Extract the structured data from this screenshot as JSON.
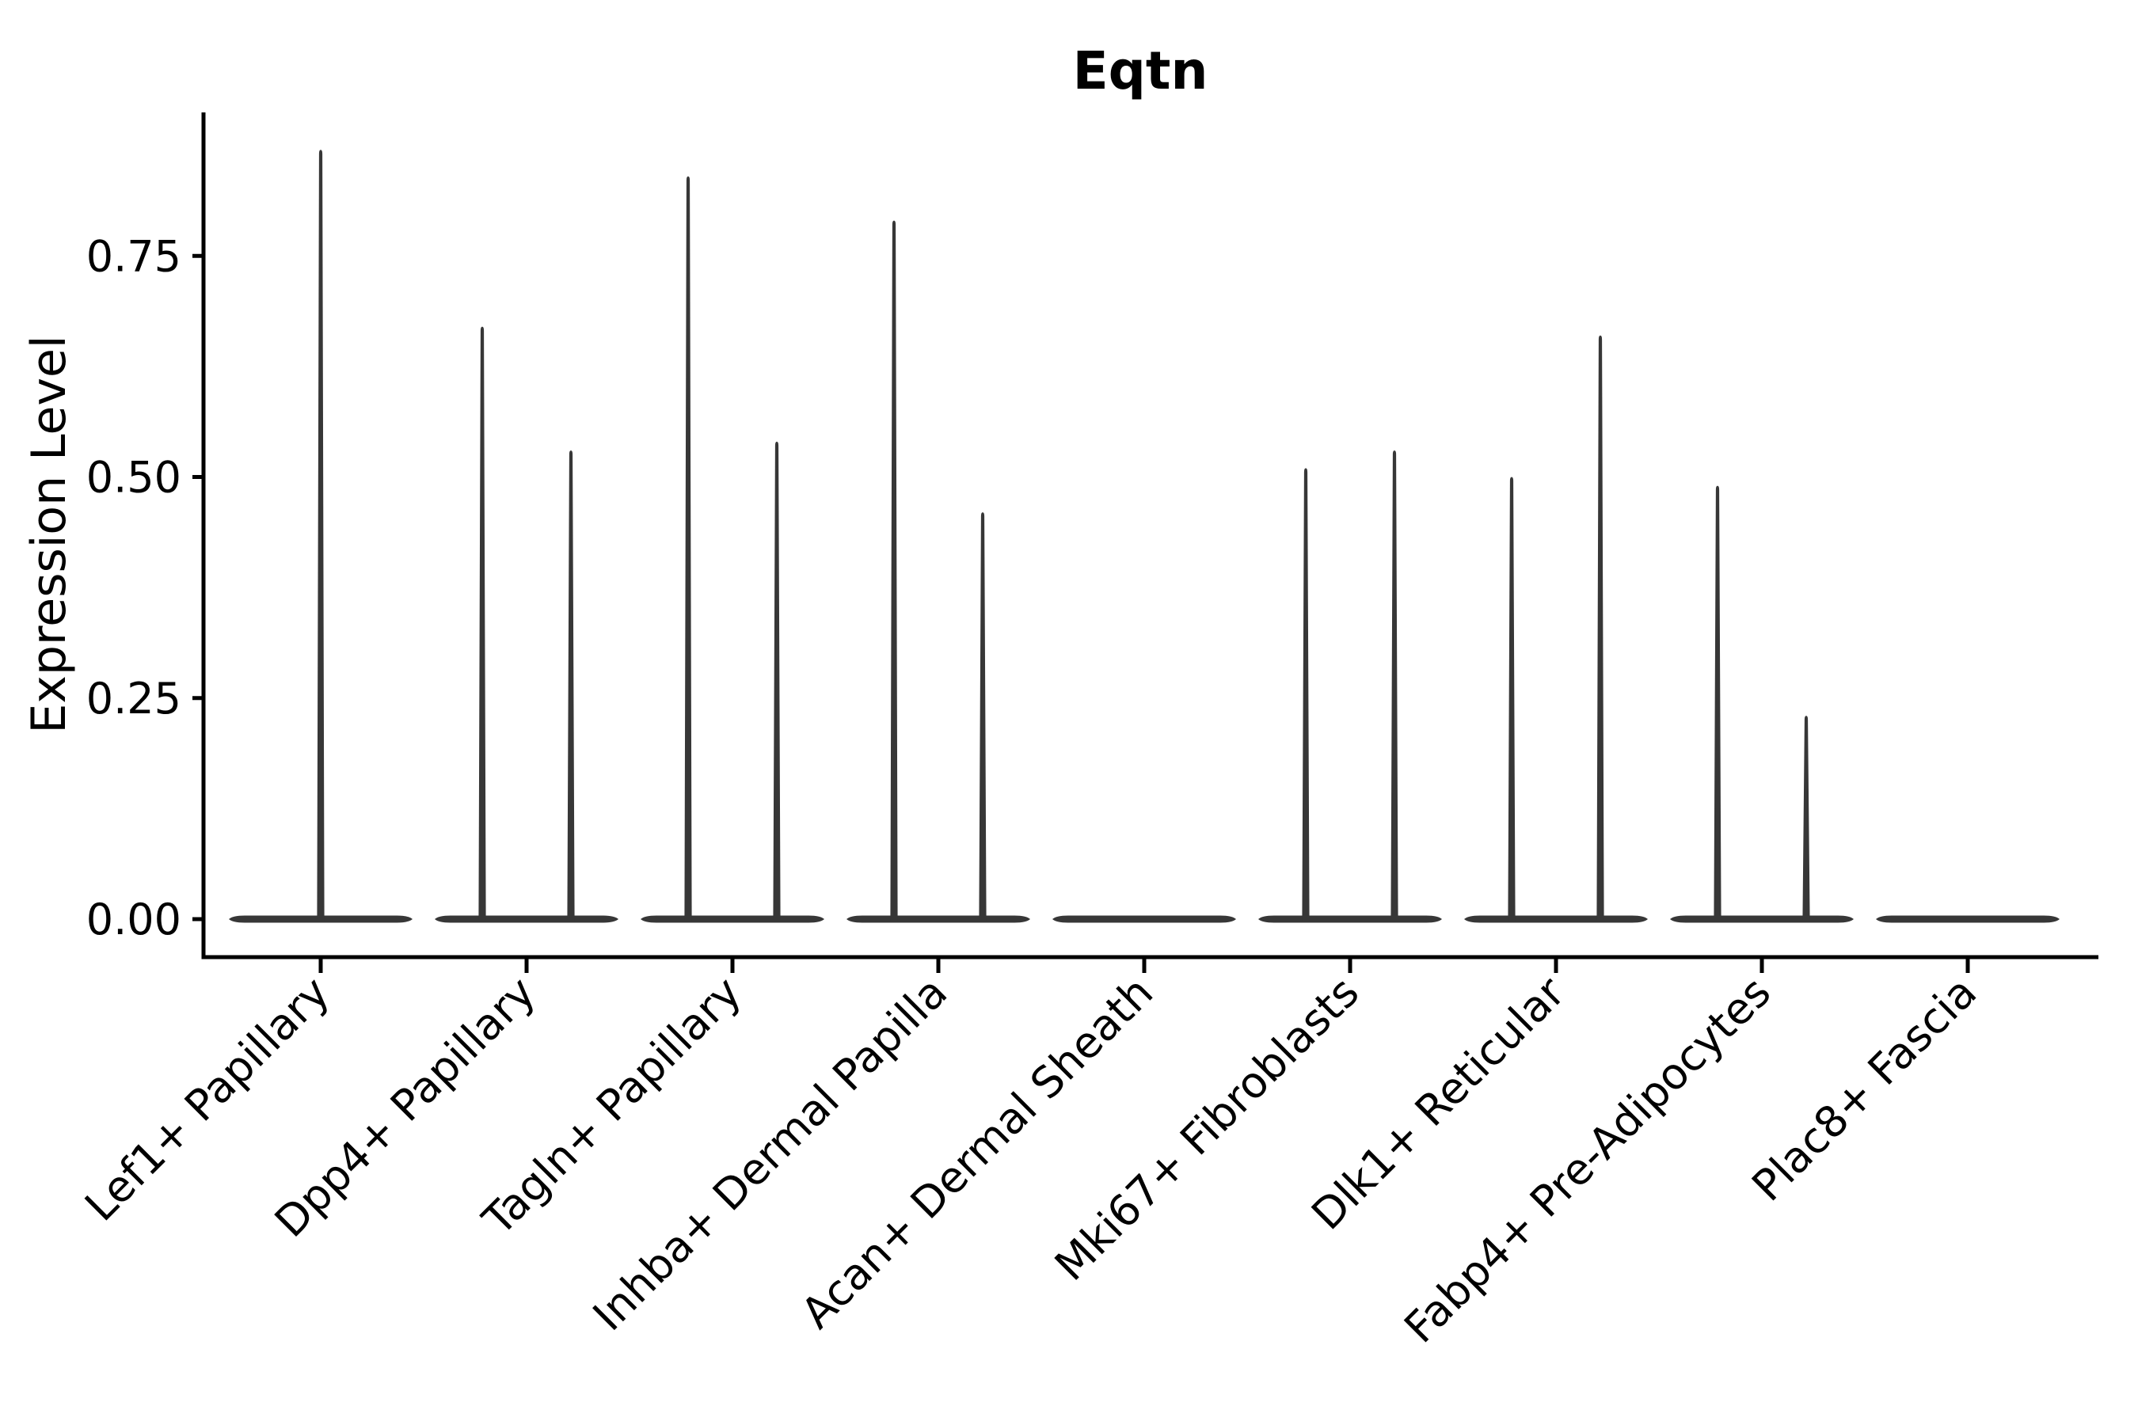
{
  "figure": {
    "title": "Eqtn",
    "ylabel": "Expression Level"
  },
  "chart_data": {
    "type": "violin",
    "title": "Eqtn",
    "xlabel": "",
    "ylabel": "Expression Level",
    "ylim": [
      0,
      0.91
    ],
    "grid": false,
    "legend_position": "none",
    "background": "#ffffff",
    "colors": {
      "ink": "#000000",
      "violin": "#373737"
    },
    "yticks": [
      {
        "value": 0.0,
        "label": "0.00"
      },
      {
        "value": 0.25,
        "label": "0.25"
      },
      {
        "value": 0.5,
        "label": "0.50"
      },
      {
        "value": 0.75,
        "label": "0.75"
      }
    ],
    "categories": [
      "Lef1+ Papillary",
      "Dpp4+ Papillary",
      "Tagln+ Papillary",
      "Inhba+ Dermal Papilla",
      "Acan+ Dermal Sheath",
      "Mki67+ Fibroblasts",
      "Dlk1+ Reticular",
      "Fabp4+ Pre-Adipocytes",
      "Plac8+ Fascia"
    ],
    "violins": [
      {
        "category": "Lef1+ Papillary",
        "base_value": 0,
        "spikes": [
          {
            "side": "center",
            "max": 0.87
          }
        ]
      },
      {
        "category": "Dpp4+ Papillary",
        "base_value": 0,
        "spikes": [
          {
            "side": "left",
            "max": 0.67
          },
          {
            "side": "right",
            "max": 0.53
          }
        ]
      },
      {
        "category": "Tagln+ Papillary",
        "base_value": 0,
        "spikes": [
          {
            "side": "left",
            "max": 0.84
          },
          {
            "side": "right",
            "max": 0.54
          }
        ]
      },
      {
        "category": "Inhba+ Dermal Papilla",
        "base_value": 0,
        "spikes": [
          {
            "side": "left",
            "max": 0.79
          },
          {
            "side": "right",
            "max": 0.46
          }
        ]
      },
      {
        "category": "Acan+ Dermal Sheath",
        "base_value": 0,
        "spikes": []
      },
      {
        "category": "Mki67+ Fibroblasts",
        "base_value": 0,
        "spikes": [
          {
            "side": "left",
            "max": 0.51
          },
          {
            "side": "right",
            "max": 0.53
          }
        ]
      },
      {
        "category": "Dlk1+ Reticular",
        "base_value": 0,
        "spikes": [
          {
            "side": "left",
            "max": 0.5
          },
          {
            "side": "right",
            "max": 0.66
          }
        ]
      },
      {
        "category": "Fabp4+ Pre-Adipocytes",
        "base_value": 0,
        "spikes": [
          {
            "side": "left",
            "max": 0.49
          },
          {
            "side": "right",
            "max": 0.23
          }
        ]
      },
      {
        "category": "Plac8+ Fascia",
        "base_value": 0,
        "spikes": []
      }
    ]
  }
}
